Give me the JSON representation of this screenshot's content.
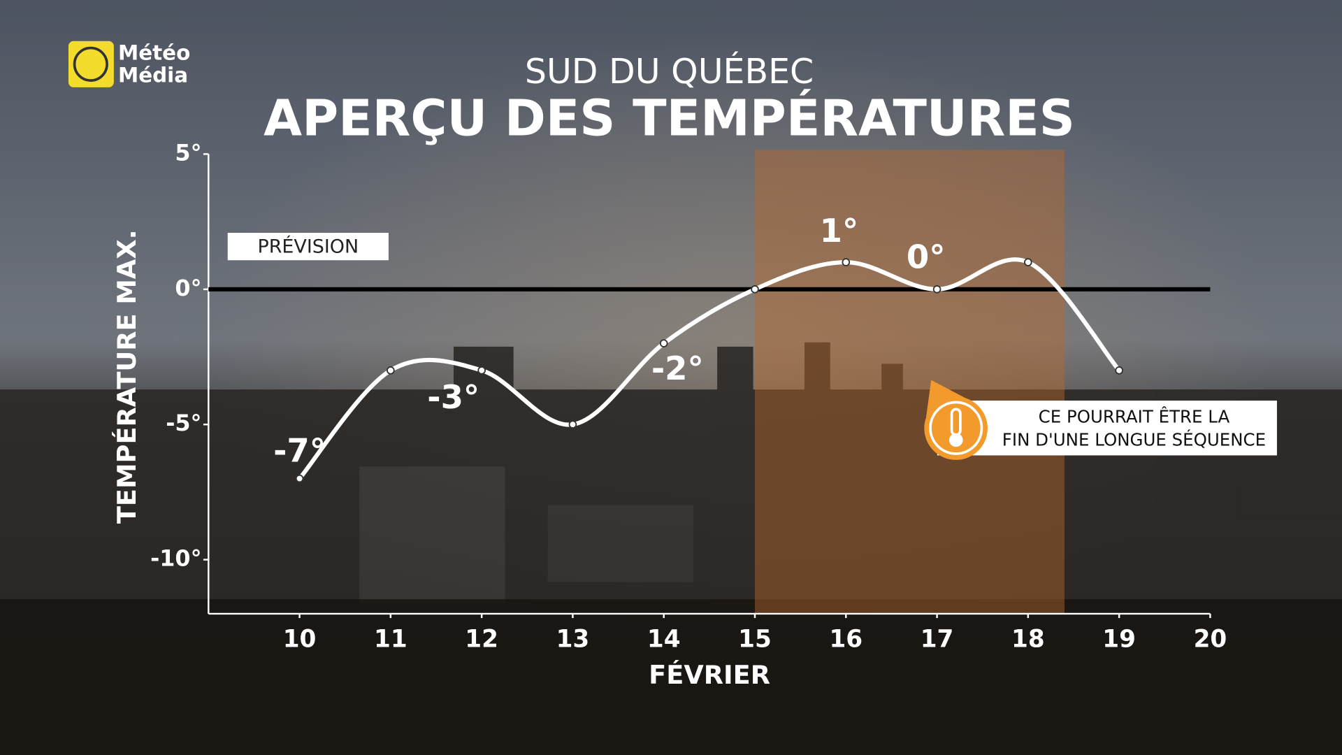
{
  "logo": {
    "line1": "Météo",
    "line2": "Média"
  },
  "chart_data": {
    "type": "line",
    "subtitle": "SUD DU QUÉBEC",
    "title": "APERÇU DES TEMPÉRATURES",
    "y_label": "TEMPÉRATURE MAX.",
    "x_label": "FÉVRIER",
    "tag": "PRÉVISION",
    "x": [
      10,
      11,
      12,
      13,
      14,
      15,
      16,
      17,
      18,
      19
    ],
    "values": [
      -7,
      -3,
      -3,
      -5,
      -2,
      0,
      1,
      0,
      1,
      -3
    ],
    "value_labels": [
      "-7°",
      null,
      "-3°",
      null,
      "-2°",
      null,
      "1°",
      "0°",
      null,
      null
    ],
    "color": "#ffffff",
    "xlim": [
      9,
      20
    ],
    "xticks": [
      10,
      11,
      12,
      13,
      14,
      15,
      16,
      17,
      18,
      19,
      20
    ],
    "ylim": [
      -12,
      5
    ],
    "yticks": [
      {
        "value": 5,
        "label": "5°"
      },
      {
        "value": 0,
        "label": "0°"
      },
      {
        "value": -5,
        "label": "-5°"
      },
      {
        "value": -10,
        "label": "-10°"
      }
    ],
    "zero_line": true,
    "highlight_xrange": [
      15,
      18.4
    ],
    "highlight_color": "#b8682c",
    "annotation": {
      "lines": [
        "CE POURRAIT ÊTRE LA",
        "FIN D'UNE LONGUE SÉQUENCE"
      ]
    }
  }
}
